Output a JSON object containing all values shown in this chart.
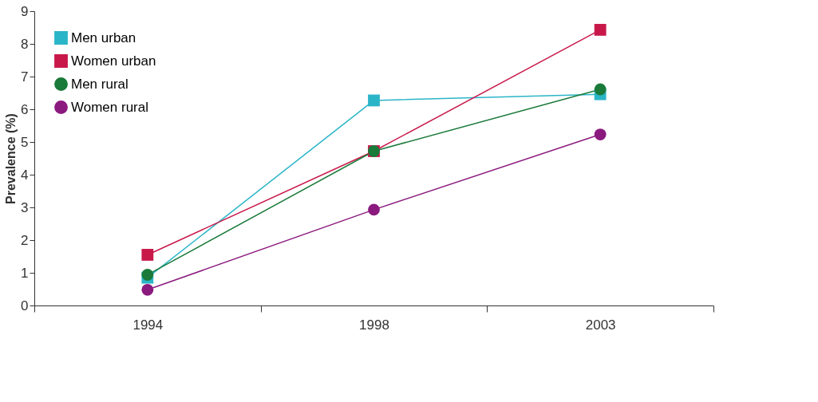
{
  "chart_data": {
    "type": "line",
    "ylabel": "Prevalence (%)",
    "categories": [
      "1994",
      "1998",
      "2003"
    ],
    "ylim": [
      0,
      9
    ],
    "yticks": [
      0,
      1,
      2,
      3,
      4,
      5,
      6,
      7,
      8,
      9
    ],
    "grid": false,
    "legend": "top left",
    "line_style": "solid",
    "series": [
      {
        "name": "Men urban",
        "color": "#2bb5c8",
        "marker": "square",
        "values": [
          0.85,
          6.27,
          6.46
        ]
      },
      {
        "name": "Women urban",
        "color": "#c8184a",
        "marker": "square",
        "values": [
          1.55,
          4.72,
          8.43
        ]
      },
      {
        "name": "Men rural",
        "color": "#1a7a3a",
        "marker": "circle",
        "values": [
          0.94,
          4.72,
          6.61
        ]
      },
      {
        "name": "Women rural",
        "color": "#8b1a7f",
        "marker": "circle",
        "values": [
          0.48,
          2.93,
          5.23
        ]
      }
    ]
  }
}
